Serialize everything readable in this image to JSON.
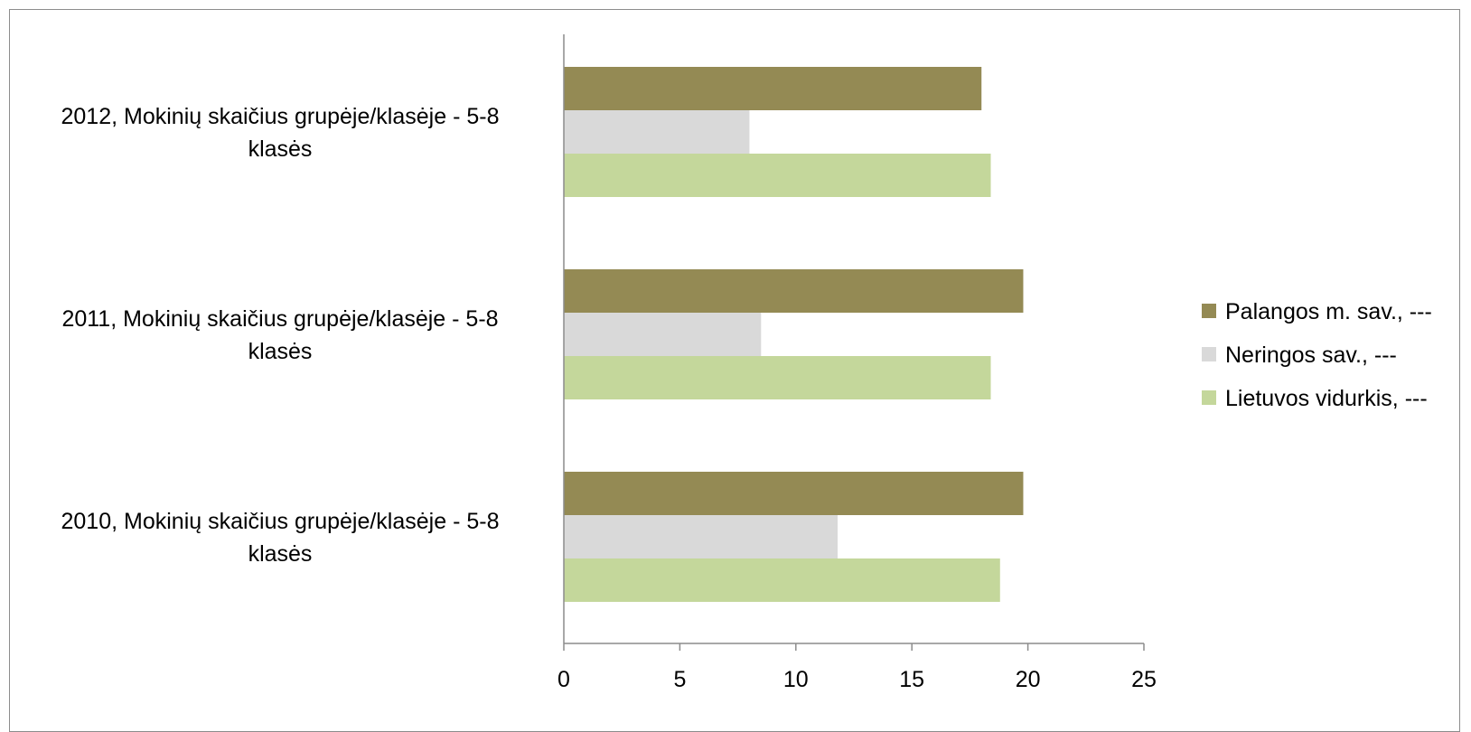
{
  "chart_data": {
    "type": "bar",
    "orientation": "horizontal",
    "title": "",
    "xlabel": "",
    "ylabel": "",
    "categories": [
      "2012, Mokinių skaičius grupėje/klasėje - 5-8 klasės",
      "2011, Mokinių skaičius grupėje/klasėje - 5-8 klasės",
      "2010, Mokinių skaičius grupėje/klasėje - 5-8 klasės"
    ],
    "category_lines": [
      [
        "2012, Mokinių skaičius grupėje/klasėje - 5-8",
        "klasės"
      ],
      [
        "2011, Mokinių skaičius grupėje/klasėje - 5-8",
        "klasės"
      ],
      [
        "2010, Mokinių skaičius grupėje/klasėje - 5-8",
        "klasės"
      ]
    ],
    "series": [
      {
        "name": "Palangos m. sav., ---",
        "color": "#948a54",
        "values": [
          18.0,
          19.8,
          19.8
        ]
      },
      {
        "name": "Neringos sav., ---",
        "color": "#d9d9d9",
        "values": [
          8.0,
          8.5,
          11.8
        ]
      },
      {
        "name": "Lietuvos vidurkis, ---",
        "color": "#c4d79b",
        "values": [
          18.4,
          18.4,
          18.8
        ]
      }
    ],
    "xlim": [
      0,
      25
    ],
    "ticks": [
      "0",
      "5",
      "10",
      "15",
      "20",
      "25"
    ],
    "grid": false,
    "legend_position": "right"
  }
}
